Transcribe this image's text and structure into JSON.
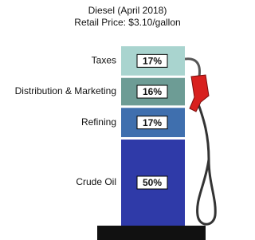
{
  "chart_data": {
    "type": "stacked-bar",
    "title": "Diesel (April 2018)",
    "subtitle": "Retail Price: $3.10/gallon",
    "series": [
      {
        "name": "Crude Oil",
        "color": "#2f3aa8",
        "values": [
          50
        ],
        "value_labels": [
          "50%"
        ]
      },
      {
        "name": "Refining",
        "color": "#3f6fae",
        "values": [
          17
        ],
        "value_labels": [
          "17%"
        ]
      },
      {
        "name": "Distribution & Marketing",
        "color": "#6d9c95",
        "values": [
          16
        ],
        "value_labels": [
          "16%"
        ]
      },
      {
        "name": "Taxes",
        "color": "#a9d4cf",
        "values": [
          17
        ],
        "value_labels": [
          "17%"
        ]
      }
    ]
  }
}
